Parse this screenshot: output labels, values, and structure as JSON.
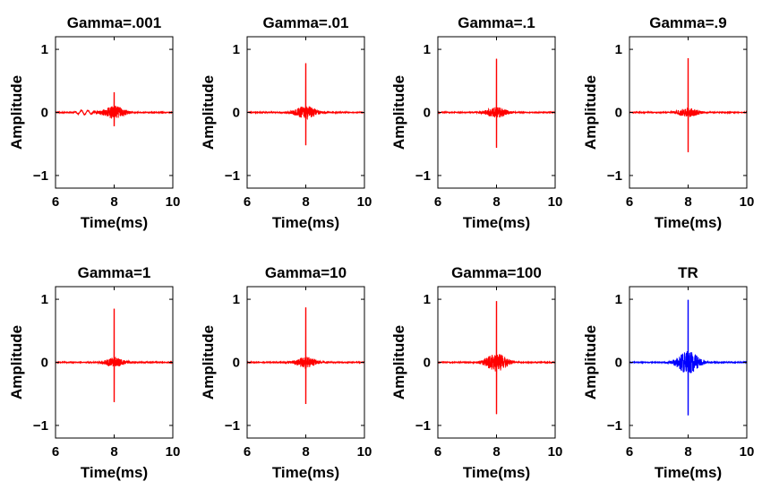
{
  "chart_data": [
    {
      "type": "line",
      "title": "Gamma=.001",
      "xlabel": "Time(ms)",
      "ylabel": "Amplitude",
      "xlim": [
        6,
        10
      ],
      "ylim": [
        -1.2,
        1.2
      ],
      "xticks": [
        "6",
        "8",
        "10"
      ],
      "yticks": [
        "1",
        "0",
        "−1"
      ],
      "series": [
        {
          "color": "#ff0000",
          "peak": 0.32,
          "trough": -0.22,
          "envelope": 0.1
        }
      ]
    },
    {
      "type": "line",
      "title": "Gamma=.01",
      "xlabel": "Time(ms)",
      "ylabel": "Amplitude",
      "xlim": [
        6,
        10
      ],
      "ylim": [
        -1.2,
        1.2
      ],
      "xticks": [
        "6",
        "8",
        "10"
      ],
      "yticks": [
        "1",
        "0",
        "−1"
      ],
      "series": [
        {
          "color": "#ff0000",
          "peak": 0.78,
          "trough": -0.52,
          "envelope": 0.1
        }
      ]
    },
    {
      "type": "line",
      "title": "Gamma=.1",
      "xlabel": "Time(ms)",
      "ylabel": "Amplitude",
      "xlim": [
        6,
        10
      ],
      "ylim": [
        -1.2,
        1.2
      ],
      "xticks": [
        "6",
        "8",
        "10"
      ],
      "yticks": [
        "1",
        "0",
        "−1"
      ],
      "series": [
        {
          "color": "#ff0000",
          "peak": 0.85,
          "trough": -0.56,
          "envelope": 0.08
        }
      ]
    },
    {
      "type": "line",
      "title": "Gamma=.9",
      "xlabel": "Time(ms)",
      "ylabel": "Amplitude",
      "xlim": [
        6,
        10
      ],
      "ylim": [
        -1.2,
        1.2
      ],
      "xticks": [
        "6",
        "8",
        "10"
      ],
      "yticks": [
        "1",
        "0",
        "−1"
      ],
      "series": [
        {
          "color": "#ff0000",
          "peak": 0.86,
          "trough": -0.63,
          "envelope": 0.07
        }
      ]
    },
    {
      "type": "line",
      "title": "Gamma=1",
      "xlabel": "Time(ms)",
      "ylabel": "Amplitude",
      "xlim": [
        6,
        10
      ],
      "ylim": [
        -1.2,
        1.2
      ],
      "xticks": [
        "6",
        "8",
        "10"
      ],
      "yticks": [
        "1",
        "0",
        "−1"
      ],
      "series": [
        {
          "color": "#ff0000",
          "peak": 0.85,
          "trough": -0.63,
          "envelope": 0.07
        }
      ]
    },
    {
      "type": "line",
      "title": "Gamma=10",
      "xlabel": "Time(ms)",
      "ylabel": "Amplitude",
      "xlim": [
        6,
        10
      ],
      "ylim": [
        -1.2,
        1.2
      ],
      "xticks": [
        "6",
        "8",
        "10"
      ],
      "yticks": [
        "1",
        "0",
        "−1"
      ],
      "series": [
        {
          "color": "#ff0000",
          "peak": 0.87,
          "trough": -0.66,
          "envelope": 0.08
        }
      ]
    },
    {
      "type": "line",
      "title": "Gamma=100",
      "xlabel": "Time(ms)",
      "ylabel": "Amplitude",
      "xlim": [
        6,
        10
      ],
      "ylim": [
        -1.2,
        1.2
      ],
      "xticks": [
        "6",
        "8",
        "10"
      ],
      "yticks": [
        "1",
        "0",
        "−1"
      ],
      "series": [
        {
          "color": "#ff0000",
          "peak": 0.97,
          "trough": -0.82,
          "envelope": 0.14
        }
      ]
    },
    {
      "type": "line",
      "title": "TR",
      "xlabel": "Time(ms)",
      "ylabel": "Amplitude",
      "xlim": [
        6,
        10
      ],
      "ylim": [
        -1.2,
        1.2
      ],
      "xticks": [
        "6",
        "8",
        "10"
      ],
      "yticks": [
        "1",
        "0",
        "−1"
      ],
      "series": [
        {
          "color": "#0000ff",
          "peak": 0.99,
          "trough": -0.84,
          "envelope": 0.18
        }
      ]
    }
  ]
}
